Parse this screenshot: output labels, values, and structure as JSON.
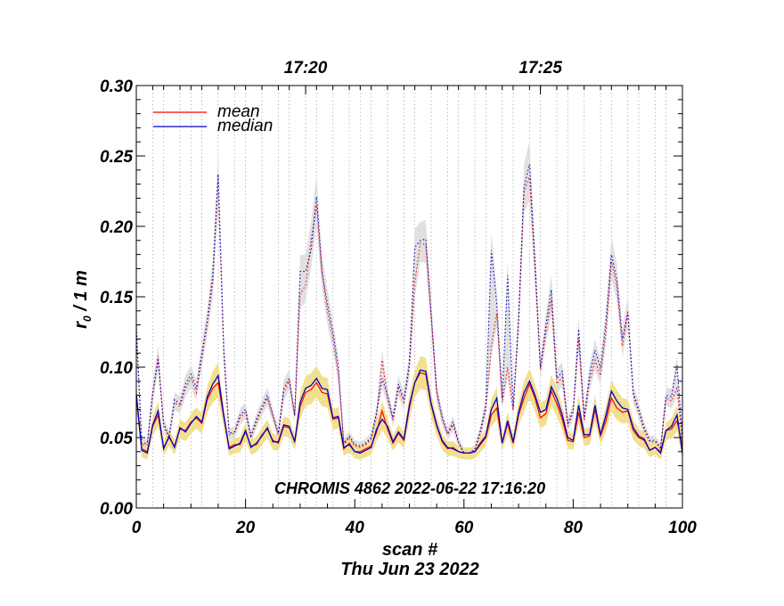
{
  "chart_data": {
    "type": "line",
    "xlabel": "scan #",
    "date_label": "Thu Jun 23 2022",
    "ylabel_main": "r",
    "ylabel_sub": "0",
    "ylabel_rest": " / 1 m",
    "annotation": "CHROMIS 4862 2022-06-22 17:16:20",
    "xlim": [
      0,
      100
    ],
    "ylim": [
      0.0,
      0.3
    ],
    "x_ticks": [
      0,
      20,
      40,
      60,
      80,
      100
    ],
    "y_ticks": [
      0.0,
      0.05,
      0.1,
      0.15,
      0.2,
      0.25,
      0.3
    ],
    "y_tick_labels": [
      "0.00",
      "0.05",
      "0.10",
      "0.15",
      "0.20",
      "0.25",
      "0.30"
    ],
    "top_axis": {
      "labels": [
        {
          "scan": 31,
          "text": "17:20"
        },
        {
          "scan": 74,
          "text": "17:25"
        }
      ],
      "minute_gridlines_scan": [
        3,
        5,
        8,
        10,
        12,
        15,
        18,
        20,
        23,
        26,
        28,
        31,
        33,
        36,
        39,
        41,
        43,
        46,
        49,
        51,
        54,
        57,
        59,
        62,
        64,
        67,
        69,
        72,
        74,
        77,
        79,
        82,
        85,
        87,
        90,
        92,
        95,
        97
      ]
    },
    "grid": "vertical dotted",
    "legend_position": "top-left",
    "colors": {
      "mean": "#ff0000",
      "median": "#0000cc",
      "band_low": "#f0e090",
      "band_high": "#e0e0e0"
    },
    "series": [
      {
        "name": "mean",
        "x": [
          0,
          1,
          2,
          3,
          4,
          5,
          6,
          7,
          8,
          9,
          10,
          11,
          12,
          13,
          14,
          15,
          16,
          17,
          18,
          19,
          20,
          21,
          22,
          23,
          24,
          25,
          26,
          27,
          28,
          29,
          30,
          31,
          32,
          33,
          34,
          35,
          36,
          37,
          38,
          39,
          40,
          41,
          42,
          43,
          44,
          45,
          46,
          47,
          48,
          49,
          50,
          51,
          52,
          53,
          54,
          55,
          56,
          57,
          58,
          59,
          60,
          61,
          62,
          63,
          64,
          65,
          66,
          67,
          68,
          69,
          70,
          71,
          72,
          73,
          74,
          75,
          76,
          77,
          78,
          79,
          80,
          81,
          82,
          83,
          84,
          85,
          86,
          87,
          88,
          89,
          90,
          91,
          92,
          93,
          94,
          95,
          96,
          97,
          98,
          99,
          100
        ],
        "values": [
          0.08,
          0.042,
          0.04,
          0.058,
          0.066,
          0.043,
          0.05,
          0.044,
          0.056,
          0.055,
          0.061,
          0.064,
          0.06,
          0.077,
          0.085,
          0.089,
          0.065,
          0.043,
          0.045,
          0.045,
          0.054,
          0.044,
          0.045,
          0.052,
          0.056,
          0.048,
          0.046,
          0.058,
          0.057,
          0.047,
          0.072,
          0.082,
          0.084,
          0.089,
          0.082,
          0.081,
          0.063,
          0.064,
          0.042,
          0.046,
          0.04,
          0.04,
          0.042,
          0.044,
          0.054,
          0.069,
          0.056,
          0.046,
          0.053,
          0.048,
          0.071,
          0.089,
          0.096,
          0.095,
          0.073,
          0.058,
          0.047,
          0.042,
          0.043,
          0.04,
          0.039,
          0.039,
          0.04,
          0.045,
          0.05,
          0.066,
          0.071,
          0.046,
          0.06,
          0.046,
          0.066,
          0.078,
          0.088,
          0.078,
          0.064,
          0.067,
          0.083,
          0.074,
          0.063,
          0.048,
          0.047,
          0.068,
          0.05,
          0.051,
          0.07,
          0.051,
          0.062,
          0.078,
          0.071,
          0.068,
          0.069,
          0.055,
          0.05,
          0.048,
          0.041,
          0.043,
          0.04,
          0.055,
          0.056,
          0.062,
          0.044
        ]
      },
      {
        "name": "median",
        "x": [
          0,
          1,
          2,
          3,
          4,
          5,
          6,
          7,
          8,
          9,
          10,
          11,
          12,
          13,
          14,
          15,
          16,
          17,
          18,
          19,
          20,
          21,
          22,
          23,
          24,
          25,
          26,
          27,
          28,
          29,
          30,
          31,
          32,
          33,
          34,
          35,
          36,
          37,
          38,
          39,
          40,
          41,
          42,
          43,
          44,
          45,
          46,
          47,
          48,
          49,
          50,
          51,
          52,
          53,
          54,
          55,
          56,
          57,
          58,
          59,
          60,
          61,
          62,
          63,
          64,
          65,
          66,
          67,
          68,
          69,
          70,
          71,
          72,
          73,
          74,
          75,
          76,
          77,
          78,
          79,
          80,
          81,
          82,
          83,
          84,
          85,
          86,
          87,
          88,
          89,
          90,
          91,
          92,
          93,
          94,
          95,
          96,
          97,
          98,
          99,
          100
        ],
        "values": [
          0.081,
          0.041,
          0.039,
          0.059,
          0.069,
          0.042,
          0.051,
          0.043,
          0.057,
          0.054,
          0.06,
          0.065,
          0.061,
          0.079,
          0.088,
          0.094,
          0.066,
          0.042,
          0.044,
          0.046,
          0.055,
          0.043,
          0.046,
          0.051,
          0.057,
          0.047,
          0.047,
          0.059,
          0.058,
          0.047,
          0.075,
          0.085,
          0.087,
          0.092,
          0.085,
          0.084,
          0.064,
          0.065,
          0.043,
          0.045,
          0.04,
          0.039,
          0.041,
          0.043,
          0.056,
          0.063,
          0.058,
          0.047,
          0.054,
          0.049,
          0.073,
          0.089,
          0.098,
          0.097,
          0.074,
          0.059,
          0.048,
          0.043,
          0.042,
          0.04,
          0.039,
          0.039,
          0.04,
          0.046,
          0.051,
          0.07,
          0.078,
          0.046,
          0.062,
          0.047,
          0.068,
          0.082,
          0.09,
          0.08,
          0.068,
          0.07,
          0.086,
          0.078,
          0.066,
          0.05,
          0.048,
          0.073,
          0.052,
          0.052,
          0.073,
          0.052,
          0.066,
          0.083,
          0.076,
          0.071,
          0.07,
          0.057,
          0.051,
          0.049,
          0.041,
          0.043,
          0.039,
          0.055,
          0.058,
          0.066,
          0.039
        ]
      },
      {
        "name": "mean (dotted)",
        "x": [
          0,
          1,
          2,
          3,
          4,
          5,
          6,
          7,
          8,
          9,
          10,
          11,
          12,
          13,
          14,
          15,
          16,
          17,
          18,
          19,
          20,
          21,
          22,
          23,
          24,
          25,
          26,
          27,
          28,
          29,
          30,
          31,
          32,
          33,
          34,
          35,
          36,
          37,
          38,
          39,
          40,
          41,
          42,
          43,
          44,
          45,
          46,
          47,
          48,
          49,
          50,
          51,
          52,
          53,
          54,
          55,
          56,
          57,
          58,
          59,
          60,
          61,
          62,
          63,
          64,
          65,
          66,
          67,
          68,
          69,
          70,
          71,
          72,
          73,
          74,
          75,
          76,
          77,
          78,
          79,
          80,
          81,
          82,
          83,
          84,
          85,
          86,
          87,
          88,
          89,
          90,
          91,
          92,
          93,
          94,
          95,
          96,
          97,
          98,
          99,
          100
        ],
        "values": [
          0.125,
          0.045,
          0.045,
          0.08,
          0.108,
          0.058,
          0.05,
          0.075,
          0.072,
          0.085,
          0.092,
          0.082,
          0.107,
          0.131,
          0.16,
          0.232,
          0.11,
          0.052,
          0.053,
          0.064,
          0.068,
          0.05,
          0.061,
          0.07,
          0.078,
          0.065,
          0.052,
          0.082,
          0.09,
          0.065,
          0.152,
          0.158,
          0.19,
          0.215,
          0.167,
          0.14,
          0.12,
          0.095,
          0.045,
          0.05,
          0.044,
          0.043,
          0.045,
          0.049,
          0.066,
          0.105,
          0.078,
          0.062,
          0.085,
          0.075,
          0.1,
          0.16,
          0.188,
          0.187,
          0.135,
          0.081,
          0.063,
          0.052,
          0.059,
          0.046,
          0.039,
          0.039,
          0.041,
          0.053,
          0.07,
          0.115,
          0.138,
          0.075,
          0.1,
          0.069,
          0.132,
          0.225,
          0.235,
          0.17,
          0.098,
          0.125,
          0.148,
          0.088,
          0.093,
          0.058,
          0.068,
          0.12,
          0.062,
          0.09,
          0.105,
          0.094,
          0.125,
          0.175,
          0.158,
          0.115,
          0.14,
          0.08,
          0.068,
          0.055,
          0.047,
          0.047,
          0.042,
          0.078,
          0.076,
          0.085,
          0.048
        ]
      },
      {
        "name": "median (dotted)",
        "x": [
          0,
          1,
          2,
          3,
          4,
          5,
          6,
          7,
          8,
          9,
          10,
          11,
          12,
          13,
          14,
          15,
          16,
          17,
          18,
          19,
          20,
          21,
          22,
          23,
          24,
          25,
          26,
          27,
          28,
          29,
          30,
          31,
          32,
          33,
          34,
          35,
          36,
          37,
          38,
          39,
          40,
          41,
          42,
          43,
          44,
          45,
          46,
          47,
          48,
          49,
          50,
          51,
          52,
          53,
          54,
          55,
          56,
          57,
          58,
          59,
          60,
          61,
          62,
          63,
          64,
          65,
          66,
          67,
          68,
          69,
          70,
          71,
          72,
          73,
          74,
          75,
          76,
          77,
          78,
          79,
          80,
          81,
          82,
          83,
          84,
          85,
          86,
          87,
          88,
          89,
          90,
          91,
          92,
          93,
          94,
          95,
          96,
          97,
          98,
          99,
          100
        ],
        "values": [
          0.13,
          0.046,
          0.046,
          0.082,
          0.105,
          0.06,
          0.051,
          0.077,
          0.074,
          0.088,
          0.095,
          0.085,
          0.11,
          0.133,
          0.165,
          0.237,
          0.115,
          0.053,
          0.054,
          0.066,
          0.07,
          0.051,
          0.063,
          0.072,
          0.08,
          0.066,
          0.053,
          0.085,
          0.092,
          0.066,
          0.168,
          0.168,
          0.183,
          0.221,
          0.168,
          0.145,
          0.125,
          0.1,
          0.046,
          0.051,
          0.045,
          0.044,
          0.046,
          0.05,
          0.068,
          0.092,
          0.08,
          0.064,
          0.088,
          0.077,
          0.103,
          0.185,
          0.19,
          0.191,
          0.138,
          0.083,
          0.065,
          0.053,
          0.061,
          0.047,
          0.039,
          0.039,
          0.042,
          0.055,
          0.073,
          0.183,
          0.145,
          0.078,
          0.165,
          0.071,
          0.135,
          0.228,
          0.244,
          0.175,
          0.1,
          0.13,
          0.155,
          0.092,
          0.097,
          0.06,
          0.07,
          0.127,
          0.064,
          0.095,
          0.112,
          0.099,
          0.132,
          0.18,
          0.162,
          0.12,
          0.138,
          0.082,
          0.07,
          0.057,
          0.048,
          0.048,
          0.043,
          0.08,
          0.079,
          0.101,
          0.05
        ]
      }
    ]
  }
}
